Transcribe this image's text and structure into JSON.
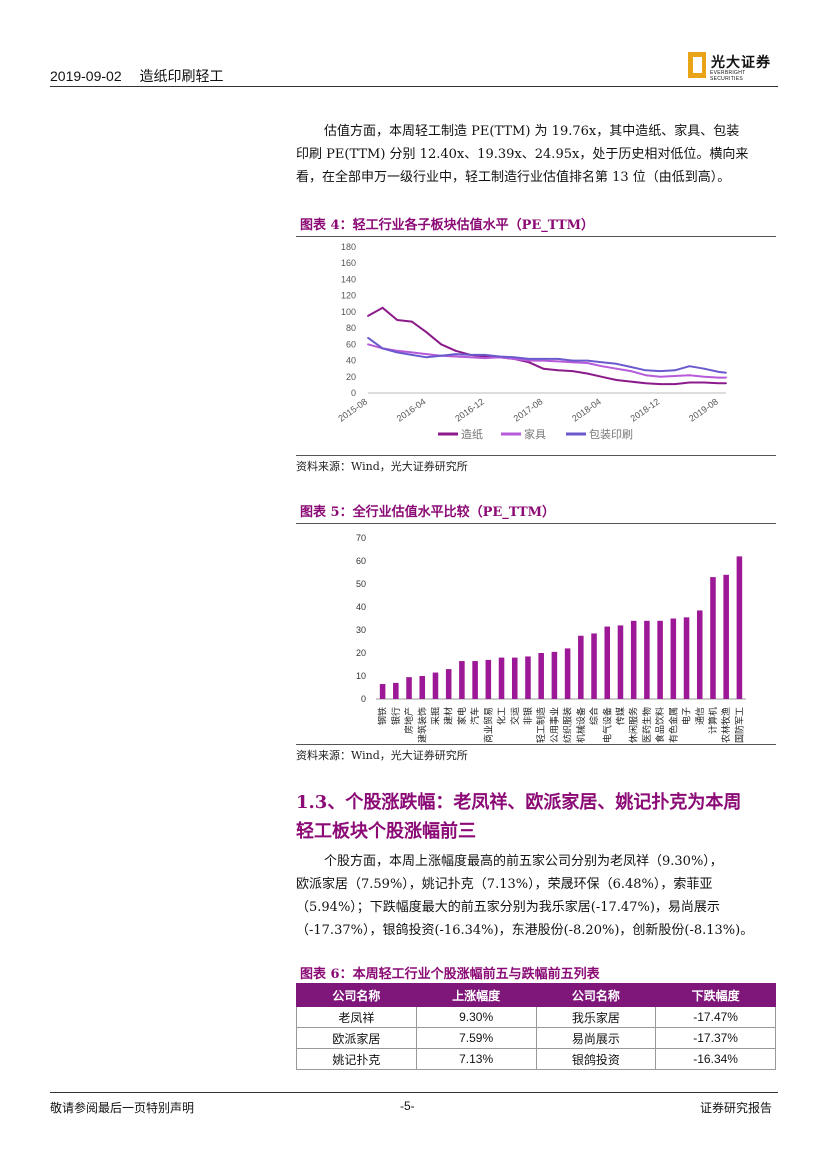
{
  "header": {
    "date": "2019-09-02",
    "section": "造纸印刷轻工",
    "logo_cn": "光大证券",
    "logo_en": "EVERBRIGHT SECURITIES"
  },
  "intro": {
    "lines": [
      "估值方面，本周轻工制造 PE(TTM) 为 19.76x，其中造纸、家具、包装",
      "印刷 PE(TTM) 分别 12.40x、19.39x、24.95x，处于历史相对低位。横向来",
      "看，在全部申万一级行业中，轻工制造行业估值排名第 13 位（由低到高）。"
    ]
  },
  "fig4": {
    "title": "图表 4：轻工行业各子板块估值水平（PE_TTM）",
    "source": "资料来源：Wind，光大证券研究所"
  },
  "fig5": {
    "title": "图表 5：全行业估值水平比较（PE_TTM）",
    "source": "资料来源：Wind，光大证券研究所"
  },
  "section13": {
    "line1": "1.3、个股涨跌幅：老凤祥、欧派家居、姚记扑克为本周",
    "line2": "轻工板块个股涨幅前三"
  },
  "para2": {
    "lines": [
      "个股方面，本周上涨幅度最高的前五家公司分别为老凤祥（9.30%），",
      "欧派家居（7.59%），姚记扑克（7.13%），荣晟环保（6.48%），索菲亚",
      "（5.94%）；下跌幅度最大的前五家分别为我乐家居(-17.47%)，易尚展示",
      "（-17.37%），银鸽投资(-16.34%)，东港股份(-8.20%)，创新股份(-8.13%)。"
    ]
  },
  "fig6": {
    "title": "图表 6：本周轻工行业个股涨幅前五与跌幅前五列表",
    "headers": [
      "公司名称",
      "上涨幅度",
      "公司名称",
      "下跌幅度"
    ],
    "rows": [
      [
        "老凤祥",
        "9.30%",
        "我乐家居",
        "-17.47%"
      ],
      [
        "欧派家居",
        "7.59%",
        "易尚展示",
        "-17.37%"
      ],
      [
        "姚记扑克",
        "7.13%",
        "银鸽投资",
        "-16.34%"
      ]
    ]
  },
  "footer": {
    "left": "敬请参阅最后一页特别声明",
    "center": "-5-",
    "right": "证券研究报告"
  },
  "chart_data": [
    {
      "type": "line",
      "x_ticks": [
        "2015-08",
        "2016-04",
        "2016-12",
        "2017-08",
        "2018-04",
        "2018-12",
        "2019-08"
      ],
      "ylim": [
        0,
        180
      ],
      "y_ticks": [
        0,
        20,
        40,
        60,
        80,
        100,
        120,
        140,
        160,
        180
      ],
      "legend_position": "bottom",
      "series": [
        {
          "name": "造纸",
          "color": "#8b1a8b",
          "x": [
            "2015-08",
            "2015-10",
            "2015-12",
            "2016-02",
            "2016-04",
            "2016-06",
            "2016-08",
            "2016-10",
            "2016-12",
            "2017-02",
            "2017-04",
            "2017-06",
            "2017-08",
            "2017-10",
            "2017-12",
            "2018-02",
            "2018-04",
            "2018-06",
            "2018-08",
            "2018-10",
            "2018-12",
            "2019-02",
            "2019-04",
            "2019-06",
            "2019-08",
            "2019-09"
          ],
          "values": [
            95,
            105,
            90,
            88,
            75,
            60,
            52,
            47,
            45,
            44,
            42,
            38,
            30,
            28,
            27,
            24,
            20,
            16,
            14,
            12,
            11,
            11,
            13,
            13,
            12,
            12
          ]
        },
        {
          "name": "家具",
          "color": "#b65ad9",
          "x": [
            "2015-08",
            "2015-10",
            "2015-12",
            "2016-02",
            "2016-04",
            "2016-06",
            "2016-08",
            "2016-10",
            "2016-12",
            "2017-02",
            "2017-04",
            "2017-06",
            "2017-08",
            "2017-10",
            "2017-12",
            "2018-02",
            "2018-04",
            "2018-06",
            "2018-08",
            "2018-10",
            "2018-12",
            "2019-02",
            "2019-04",
            "2019-06",
            "2019-08",
            "2019-09"
          ],
          "values": [
            60,
            55,
            52,
            50,
            48,
            46,
            45,
            44,
            43,
            44,
            42,
            40,
            40,
            39,
            38,
            37,
            33,
            30,
            27,
            22,
            20,
            21,
            22,
            20,
            19,
            19
          ]
        },
        {
          "name": "包装印刷",
          "color": "#6a5acd",
          "x": [
            "2015-08",
            "2015-10",
            "2015-12",
            "2016-02",
            "2016-04",
            "2016-06",
            "2016-08",
            "2016-10",
            "2016-12",
            "2017-02",
            "2017-04",
            "2017-06",
            "2017-08",
            "2017-10",
            "2017-12",
            "2018-02",
            "2018-04",
            "2018-06",
            "2018-08",
            "2018-10",
            "2018-12",
            "2019-02",
            "2019-04",
            "2019-06",
            "2019-08",
            "2019-09"
          ],
          "values": [
            68,
            55,
            50,
            47,
            44,
            46,
            48,
            47,
            47,
            45,
            44,
            42,
            42,
            42,
            40,
            40,
            38,
            36,
            32,
            28,
            27,
            28,
            33,
            30,
            26,
            25
          ]
        }
      ]
    },
    {
      "type": "bar",
      "color": "#9c1896",
      "ylim": [
        0,
        70
      ],
      "y_ticks": [
        0,
        10,
        20,
        30,
        40,
        50,
        60,
        70
      ],
      "categories": [
        "钢铁",
        "银行",
        "房地产",
        "建筑装饰",
        "采掘",
        "建材",
        "家电",
        "汽车",
        "商业贸易",
        "化工",
        "交运",
        "非银",
        "轻工制造",
        "公用事业",
        "纺织服装",
        "机械设备",
        "综合",
        "电气设备",
        "传媒",
        "休闲服务",
        "医药生物",
        "食品饮料",
        "有色金属",
        "电子",
        "通信",
        "计算机",
        "农林牧渔",
        "国防军工"
      ],
      "values": [
        6.5,
        7,
        9.5,
        10,
        11.5,
        13,
        16.5,
        16.5,
        17,
        18,
        18,
        18.5,
        20,
        20.5,
        22,
        27.5,
        28.5,
        31.5,
        32,
        34,
        34,
        34,
        35,
        35.5,
        38.5,
        53,
        54,
        62
      ]
    }
  ]
}
